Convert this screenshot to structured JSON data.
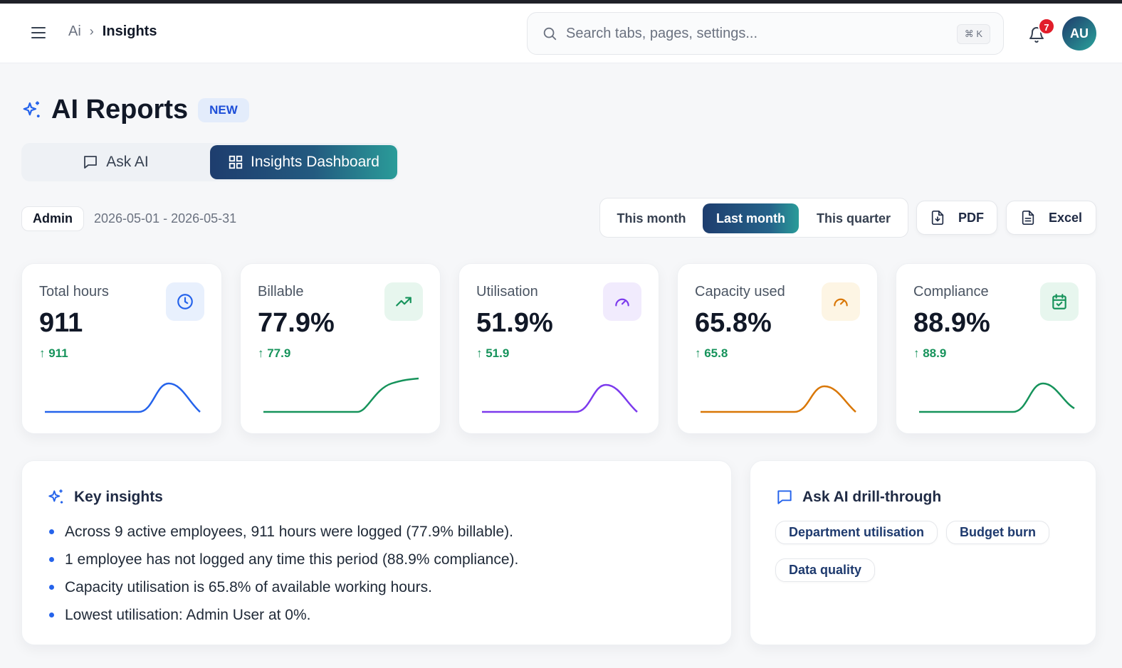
{
  "header": {
    "breadcrumb_root": "Ai",
    "breadcrumb_current": "Insights",
    "search_placeholder": "Search tabs, pages, settings...",
    "search_shortcut": "⌘ K",
    "notification_count": "7",
    "avatar_initials": "AU"
  },
  "page": {
    "title": "AI Reports",
    "title_badge": "NEW",
    "tabs": [
      {
        "label": "Ask AI",
        "icon": "chat-icon",
        "active": false
      },
      {
        "label": "Insights Dashboard",
        "icon": "grid-icon",
        "active": true
      }
    ]
  },
  "filters": {
    "scope": "Admin",
    "date_range": "2026-05-01 - 2026-05-31",
    "periods": [
      {
        "label": "This month",
        "active": false
      },
      {
        "label": "Last month",
        "active": true
      },
      {
        "label": "This quarter",
        "active": false
      }
    ],
    "exports": [
      {
        "label": "PDF",
        "icon": "file-download-icon"
      },
      {
        "label": "Excel",
        "icon": "spreadsheet-icon"
      }
    ]
  },
  "kpis": [
    {
      "label": "Total hours",
      "value": "911",
      "delta": "↑ 911",
      "icon": "clock-icon",
      "color": "#2563eb",
      "icon_bg": "#e8f0fd"
    },
    {
      "label": "Billable",
      "value": "77.9%",
      "delta": "↑ 77.9",
      "icon": "trending-up-icon",
      "color": "#16935b",
      "icon_bg": "#e7f6ee"
    },
    {
      "label": "Utilisation",
      "value": "51.9%",
      "delta": "↑ 51.9",
      "icon": "gauge-icon",
      "color": "#7c3aed",
      "icon_bg": "#f1ebfd"
    },
    {
      "label": "Capacity used",
      "value": "65.8%",
      "delta": "↑ 65.8",
      "icon": "gauge-icon",
      "color": "#d97706",
      "icon_bg": "#fdf5e4"
    },
    {
      "label": "Compliance",
      "value": "88.9%",
      "delta": "↑ 88.9",
      "icon": "calendar-check-icon",
      "color": "#16935b",
      "icon_bg": "#e7f6ee"
    }
  ],
  "insights": {
    "title": "Key insights",
    "items": [
      "Across 9 active employees, 911 hours were logged (77.9% billable).",
      "1 employee has not logged any time this period (88.9% compliance).",
      "Capacity utilisation is 65.8% of available working hours.",
      "Lowest utilisation: Admin User at 0%."
    ]
  },
  "drill": {
    "title": "Ask AI drill-through",
    "chips": [
      "Department utilisation",
      "Budget burn",
      "Data quality"
    ]
  }
}
